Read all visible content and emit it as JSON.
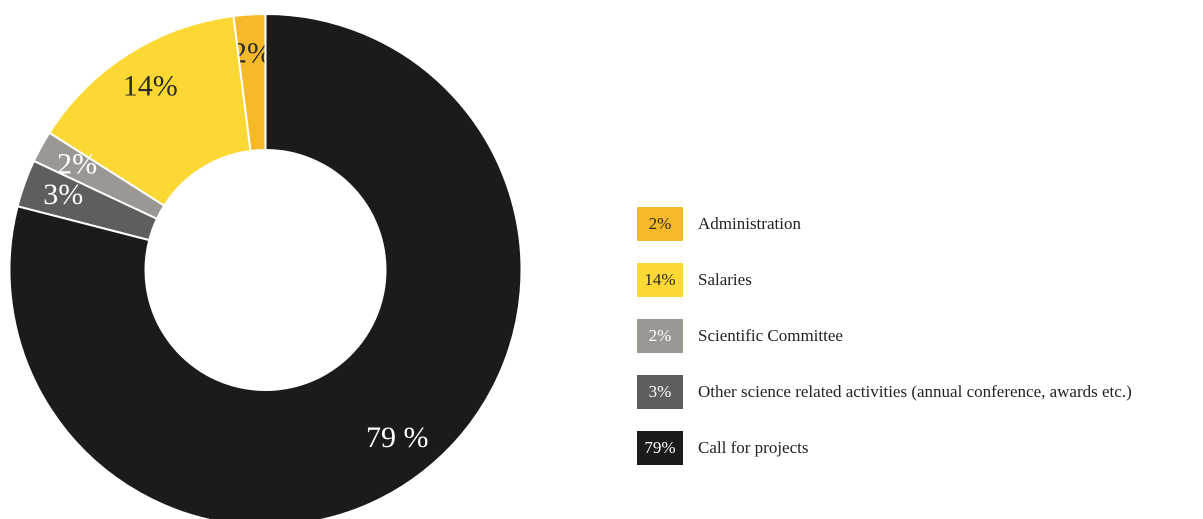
{
  "chart_data": {
    "type": "donut",
    "series": [
      {
        "name": "Administration",
        "color": "#f6b929",
        "values": [
          2
        ],
        "value_labels": [
          "2%"
        ],
        "legend_label": "2%"
      },
      {
        "name": "Salaries",
        "color": "#fcd835",
        "values": [
          14
        ],
        "value_labels": [
          "14%"
        ],
        "legend_label": "14%"
      },
      {
        "name": "Scientific Committee",
        "color": "#9b9894",
        "values": [
          2
        ],
        "value_labels": [
          "2%"
        ],
        "legend_label": "2%"
      },
      {
        "name": "Other science related activities (annual conference, awards etc.)",
        "color": "#5f5e5c",
        "values": [
          3
        ],
        "value_labels": [
          "3%"
        ],
        "legend_label": "3%"
      },
      {
        "name": "Call for projects",
        "color": "#1c1b1a",
        "values": [
          79
        ],
        "value_labels": [
          "79 %"
        ],
        "legend_label": "79%"
      }
    ],
    "legend": "right"
  }
}
